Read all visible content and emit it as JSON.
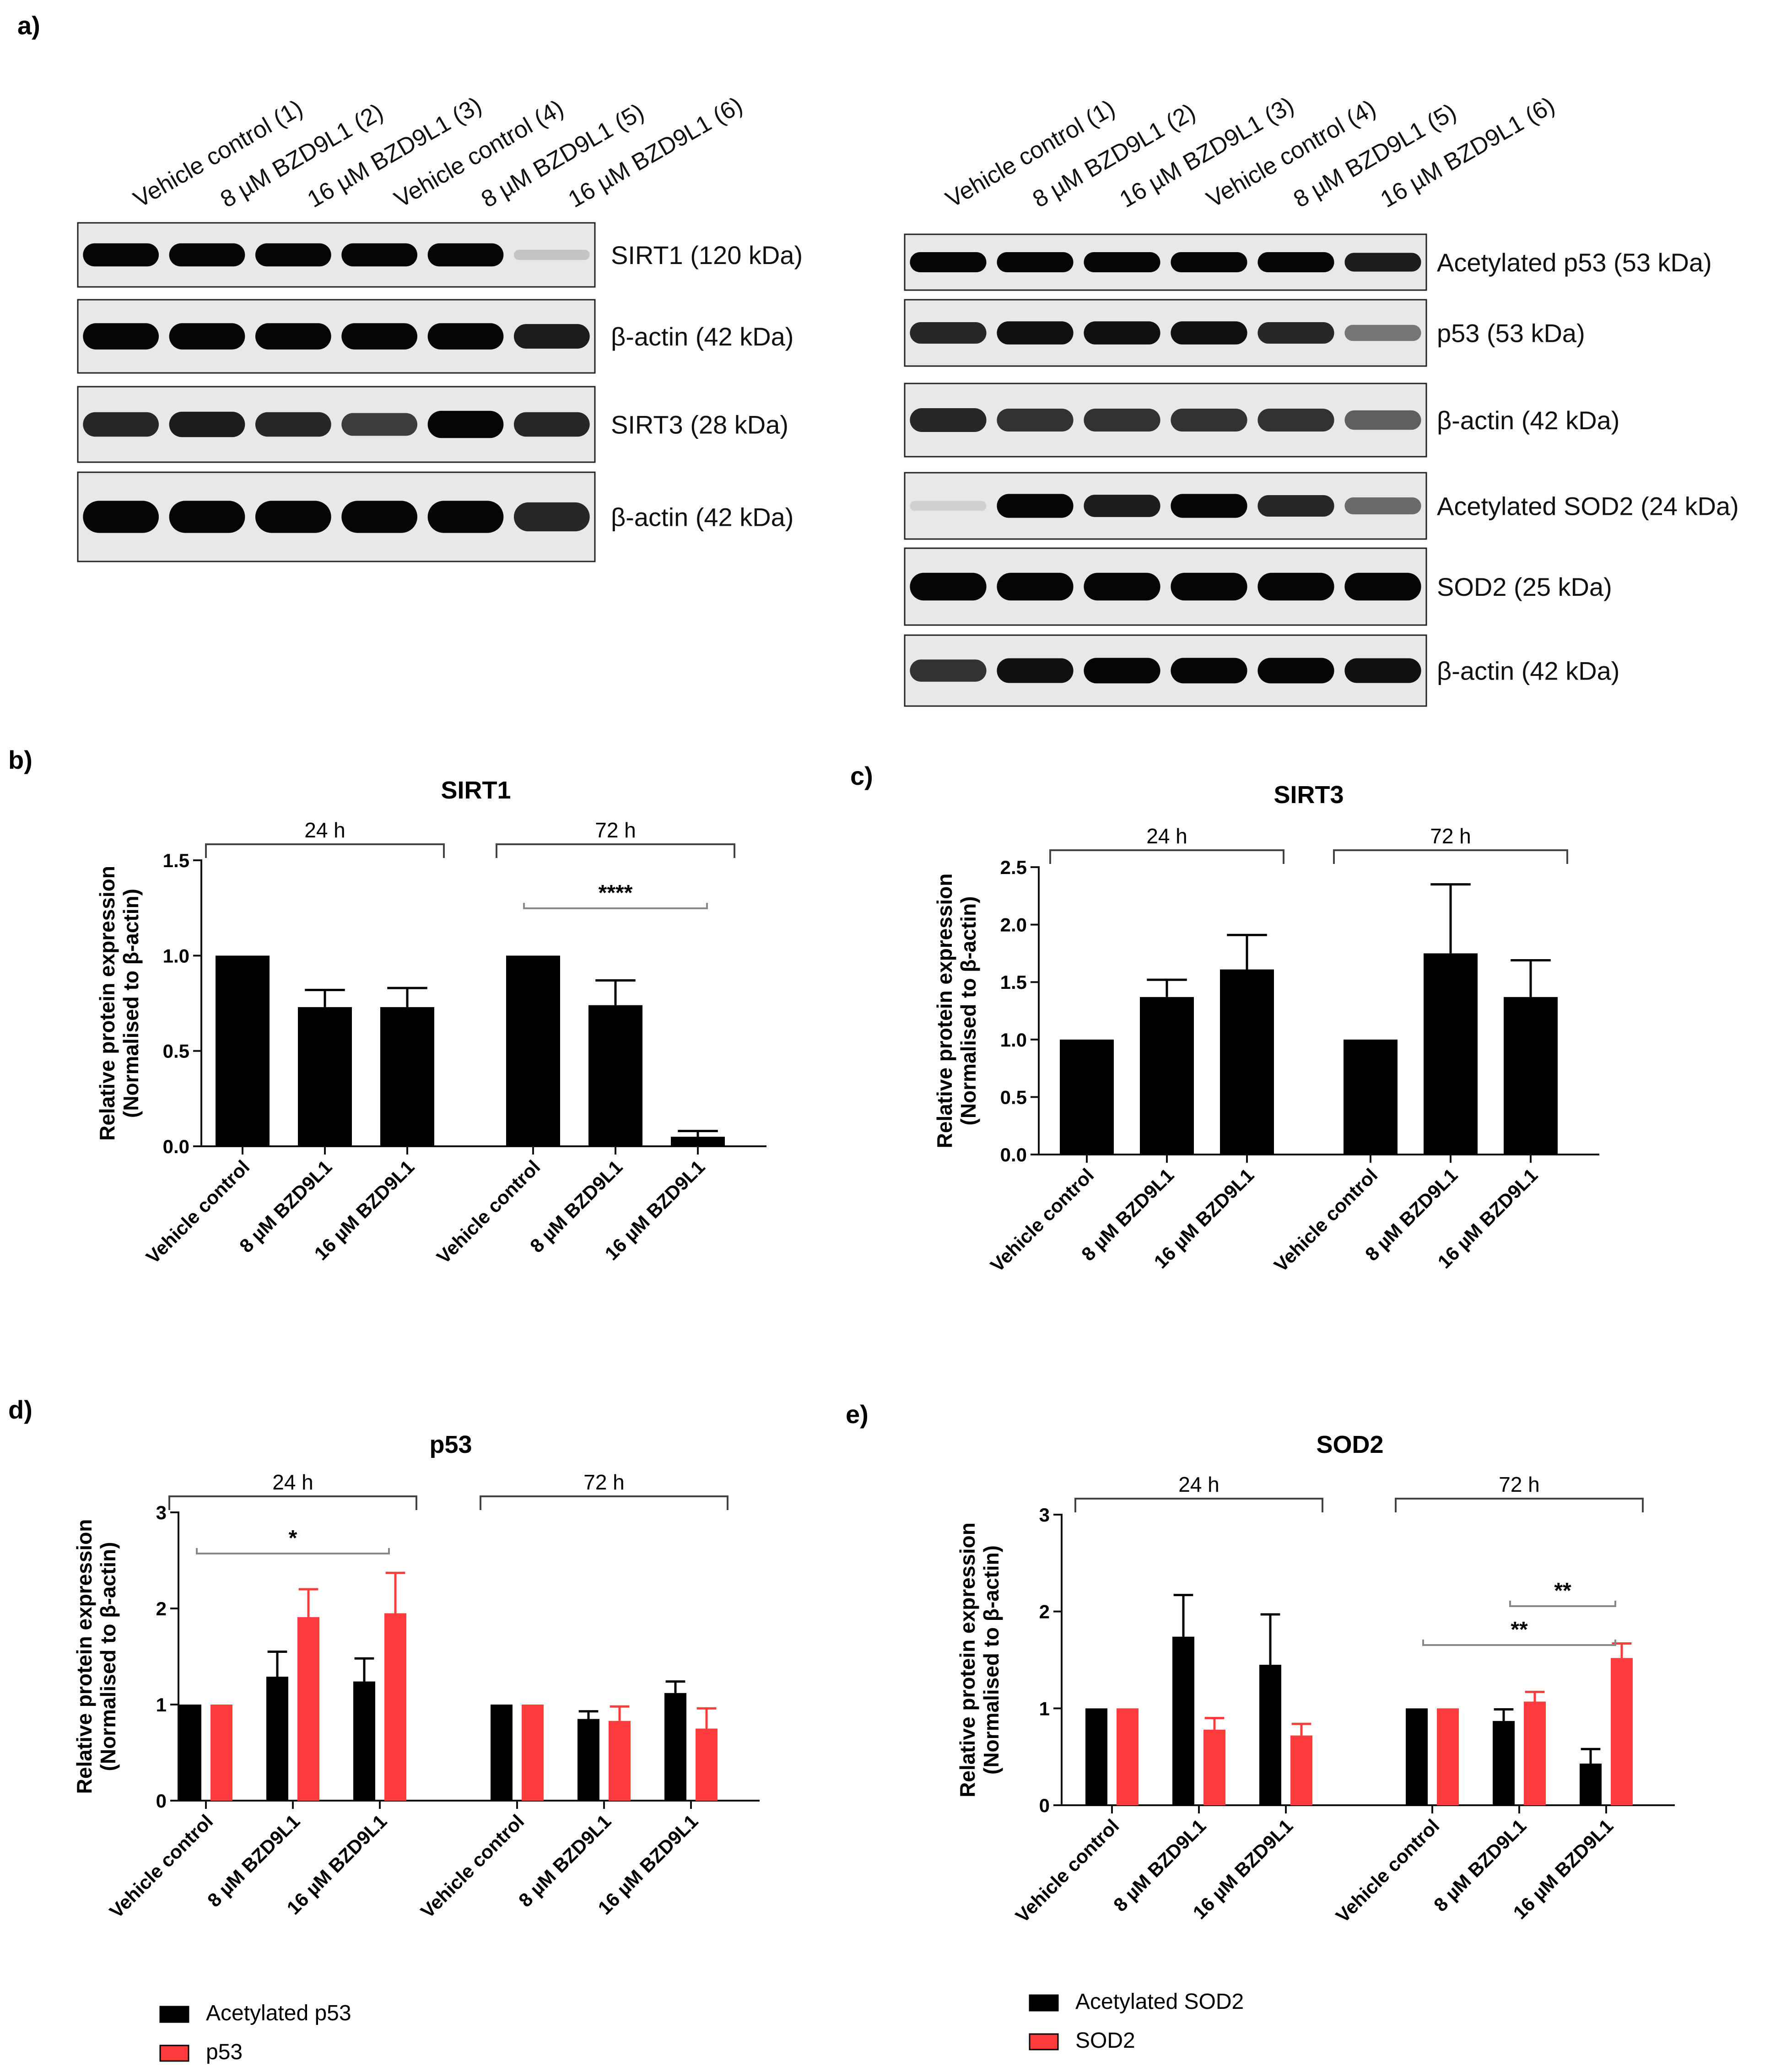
{
  "figure": {
    "panel_letters": {
      "a": "a)",
      "b": "b)",
      "c": "c)",
      "d": "d)",
      "e": "e)"
    }
  },
  "colors": {
    "black": "#000000",
    "red": "#ff3b3b",
    "gray": "#888888",
    "blot_bg": "#e6e6e6"
  },
  "blots": {
    "lane_labels": [
      "Vehicle control (1)",
      "8 µM BZD9L1 (2)",
      "16 µM BZD9L1 (3)",
      "Vehicle control (4)",
      "8 µM BZD9L1 (5)",
      "16 µM BZD9L1 (6)"
    ],
    "left_strips": [
      {
        "label": "SIRT1 (120 kDa)",
        "intensities": [
          1,
          1,
          1,
          1,
          1,
          0.15
        ]
      },
      {
        "label": "β-actin (42 kDa)",
        "intensities": [
          1,
          1,
          1,
          1,
          1,
          0.9
        ]
      },
      {
        "label": "SIRT3 (28 kDa)",
        "intensities": [
          0.85,
          0.9,
          0.85,
          0.75,
          1,
          0.85
        ]
      },
      {
        "label": "β-actin (42 kDa)",
        "intensities": [
          1,
          1,
          1,
          1,
          1,
          0.85
        ]
      }
    ],
    "right_strips": [
      {
        "label": "Acetylated p53 (53 kDa)",
        "intensities": [
          1,
          1,
          1,
          1,
          1,
          0.9
        ]
      },
      {
        "label": "p53 (53 kDa)",
        "intensities": [
          0.85,
          0.95,
          0.95,
          0.95,
          0.85,
          0.5
        ]
      },
      {
        "label": "β-actin (42 kDa)",
        "intensities": [
          0.85,
          0.8,
          0.8,
          0.8,
          0.8,
          0.6
        ]
      },
      {
        "label": "Acetylated SOD2 (24 kDa)",
        "intensities": [
          0.1,
          1,
          0.9,
          1,
          0.85,
          0.55
        ]
      },
      {
        "label": "SOD2 (25 kDa)",
        "intensities": [
          1,
          1,
          1,
          1,
          1,
          1
        ]
      },
      {
        "label": "β-actin (42 kDa)",
        "intensities": [
          0.8,
          0.95,
          1,
          1,
          1,
          0.95
        ]
      }
    ]
  },
  "chart_data": [
    {
      "panel": "b",
      "type": "bar",
      "title": "SIRT1",
      "ylabel": "Relative protein expression",
      "ylabel2": "(Normalised to β-actin)",
      "ylim": [
        0,
        1.5
      ],
      "yticks": [
        "0.0",
        "0.5",
        "1.0",
        "1.5"
      ],
      "categories": [
        "Vehicle control",
        "8 µM BZD9L1",
        "16 µM BZD9L1",
        "Vehicle control",
        "8 µM BZD9L1",
        "16 µM BZD9L1"
      ],
      "groups": [
        {
          "label": "24 h"
        },
        {
          "label": "72 h"
        }
      ],
      "series": [
        {
          "name": "SIRT1",
          "color": "#000000",
          "values": [
            1.0,
            0.73,
            0.73,
            1.0,
            0.74,
            0.05
          ],
          "errors": [
            0,
            0.09,
            0.1,
            0,
            0.13,
            0.03
          ]
        }
      ],
      "significance": [
        {
          "label": "****",
          "from": 3,
          "to": 5
        }
      ]
    },
    {
      "panel": "c",
      "type": "bar",
      "title": "SIRT3",
      "ylabel": "Relative protein expression",
      "ylabel2": "(Normalised to β-actin)",
      "ylim": [
        0,
        2.5
      ],
      "yticks": [
        "0.0",
        "0.5",
        "1.0",
        "1.5",
        "2.0",
        "2.5"
      ],
      "categories": [
        "Vehicle control",
        "8 µM BZD9L1",
        "16 µM BZD9L1",
        "Vehicle control",
        "8 µM BZD9L1",
        "16 µM BZD9L1"
      ],
      "groups": [
        {
          "label": "24 h"
        },
        {
          "label": "72 h"
        }
      ],
      "series": [
        {
          "name": "SIRT3",
          "color": "#000000",
          "values": [
            1.0,
            1.37,
            1.61,
            1.0,
            1.75,
            1.37
          ],
          "errors": [
            0,
            0.15,
            0.3,
            0,
            0.6,
            0.32
          ]
        }
      ],
      "significance": []
    },
    {
      "panel": "d",
      "type": "bar",
      "title": "p53",
      "ylabel": "Relative protein expression",
      "ylabel2": "(Normalised to β-actin)",
      "ylim": [
        0,
        3
      ],
      "yticks": [
        "0",
        "1",
        "2",
        "3"
      ],
      "categories": [
        "Vehicle control",
        "8 µM BZD9L1",
        "16 µM BZD9L1",
        "Vehicle control",
        "8 µM BZD9L1",
        "16 µM BZD9L1"
      ],
      "groups": [
        {
          "label": "24 h"
        },
        {
          "label": "72 h"
        }
      ],
      "series": [
        {
          "name": "Acetylated p53",
          "color": "#000000",
          "values": [
            1.0,
            1.29,
            1.24,
            1.0,
            0.85,
            1.12
          ],
          "errors": [
            0,
            0.26,
            0.24,
            0,
            0.08,
            0.12
          ]
        },
        {
          "name": "p53",
          "color": "#ff3b3b",
          "values": [
            1.0,
            1.91,
            1.95,
            1.0,
            0.83,
            0.75
          ],
          "errors": [
            0,
            0.29,
            0.42,
            0,
            0.15,
            0.21
          ]
        }
      ],
      "significance": [
        {
          "label": "*",
          "from": 0,
          "to": 2
        }
      ],
      "legend": [
        "Acetylated p53",
        "p53"
      ]
    },
    {
      "panel": "e",
      "type": "bar",
      "title": "SOD2",
      "ylabel": "Relative protein expression",
      "ylabel2": "(Normalised to β-actin)",
      "ylim": [
        0,
        3
      ],
      "yticks": [
        "0",
        "1",
        "2",
        "3"
      ],
      "categories": [
        "Vehicle control",
        "8 µM BZD9L1",
        "16 µM BZD9L1",
        "Vehicle control",
        "8 µM BZD9L1",
        "16 µM BZD9L1"
      ],
      "groups": [
        {
          "label": "24 h"
        },
        {
          "label": "72 h"
        }
      ],
      "series": [
        {
          "name": "Acetylated SOD2",
          "color": "#000000",
          "values": [
            1.0,
            1.74,
            1.45,
            1.0,
            0.87,
            0.43
          ],
          "errors": [
            0,
            0.43,
            0.52,
            0,
            0.12,
            0.15
          ]
        },
        {
          "name": "SOD2",
          "color": "#ff3b3b",
          "values": [
            1.0,
            0.78,
            0.72,
            1.0,
            1.07,
            1.52
          ],
          "errors": [
            0,
            0.12,
            0.12,
            0,
            0.1,
            0.15
          ]
        }
      ],
      "significance": [
        {
          "label": "**",
          "from": 3,
          "to": 5,
          "level": 1
        },
        {
          "label": "**",
          "from": 4,
          "to": 5,
          "level": 2
        }
      ],
      "legend": [
        "Acetylated SOD2",
        "SOD2"
      ]
    }
  ]
}
